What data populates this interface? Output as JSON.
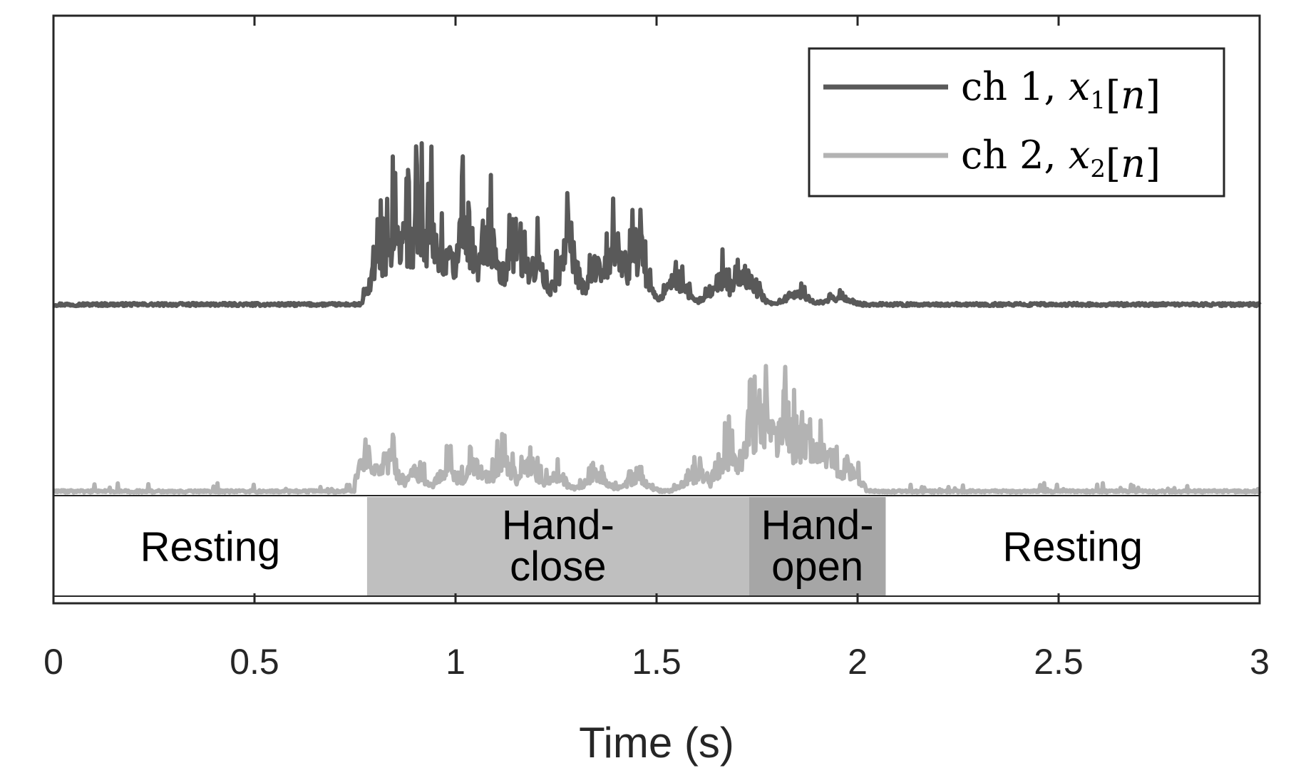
{
  "chart_data": {
    "type": "line",
    "title": "",
    "xlabel": "Time (s)",
    "ylabel": "",
    "xlim": [
      0,
      3
    ],
    "xticks": [
      "0",
      "0.5",
      "1",
      "1.5",
      "2",
      "2.5",
      "3"
    ],
    "grid": false,
    "legend_position": "top-right",
    "series": [
      {
        "name": "ch 1, x1[n]",
        "legend_prefix": "ch 1, ",
        "legend_var": "x",
        "legend_sub": "1",
        "legend_arg": "[n]",
        "color": "#595959",
        "baseline": 0,
        "active_start": 0.77,
        "active_end": 2.05,
        "peaks": [
          {
            "t": 0.82,
            "amp": 0.45
          },
          {
            "t": 0.85,
            "amp": 0.62
          },
          {
            "t": 0.88,
            "amp": 0.56
          },
          {
            "t": 0.91,
            "amp": 0.7
          },
          {
            "t": 0.94,
            "amp": 0.66
          },
          {
            "t": 0.98,
            "amp": 0.4
          },
          {
            "t": 1.02,
            "amp": 0.6
          },
          {
            "t": 1.08,
            "amp": 0.58
          },
          {
            "t": 1.15,
            "amp": 0.52
          },
          {
            "t": 1.2,
            "amp": 0.38
          },
          {
            "t": 1.28,
            "amp": 0.48
          },
          {
            "t": 1.35,
            "amp": 0.33
          },
          {
            "t": 1.4,
            "amp": 0.52
          },
          {
            "t": 1.45,
            "amp": 0.43
          },
          {
            "t": 1.55,
            "amp": 0.22
          },
          {
            "t": 1.66,
            "amp": 0.23
          },
          {
            "t": 1.72,
            "amp": 0.26
          },
          {
            "t": 1.85,
            "amp": 0.1
          },
          {
            "t": 1.95,
            "amp": 0.06
          }
        ]
      },
      {
        "name": "ch 2, x2[n]",
        "legend_prefix": "ch 2, ",
        "legend_var": "x",
        "legend_sub": "2",
        "legend_arg": "[n]",
        "color": "#b3b3b3",
        "baseline": 0,
        "active_start": 0.75,
        "active_end": 2.02,
        "peaks": [
          {
            "t": 0.78,
            "amp": 0.3
          },
          {
            "t": 0.83,
            "amp": 0.3
          },
          {
            "t": 0.9,
            "amp": 0.18
          },
          {
            "t": 0.98,
            "amp": 0.2
          },
          {
            "t": 1.05,
            "amp": 0.24
          },
          {
            "t": 1.12,
            "amp": 0.27
          },
          {
            "t": 1.18,
            "amp": 0.25
          },
          {
            "t": 1.25,
            "amp": 0.14
          },
          {
            "t": 1.35,
            "amp": 0.14
          },
          {
            "t": 1.45,
            "amp": 0.12
          },
          {
            "t": 1.6,
            "amp": 0.15
          },
          {
            "t": 1.68,
            "amp": 0.33
          },
          {
            "t": 1.74,
            "amp": 0.58
          },
          {
            "t": 1.78,
            "amp": 0.72
          },
          {
            "t": 1.82,
            "amp": 0.65
          },
          {
            "t": 1.87,
            "amp": 0.48
          },
          {
            "t": 1.92,
            "amp": 0.4
          },
          {
            "t": 1.98,
            "amp": 0.18
          }
        ]
      }
    ],
    "phases": [
      {
        "label": "Resting",
        "start": 0,
        "end": 0.78,
        "color": "#ffffff"
      },
      {
        "label": "Hand-\nclose",
        "start": 0.78,
        "end": 1.73,
        "color": "#bfbfbf"
      },
      {
        "label": "Hand-\nopen",
        "start": 1.73,
        "end": 2.07,
        "color": "#a6a6a6"
      },
      {
        "label": "Resting",
        "start": 2.07,
        "end": 3,
        "color": "#ffffff"
      }
    ]
  }
}
